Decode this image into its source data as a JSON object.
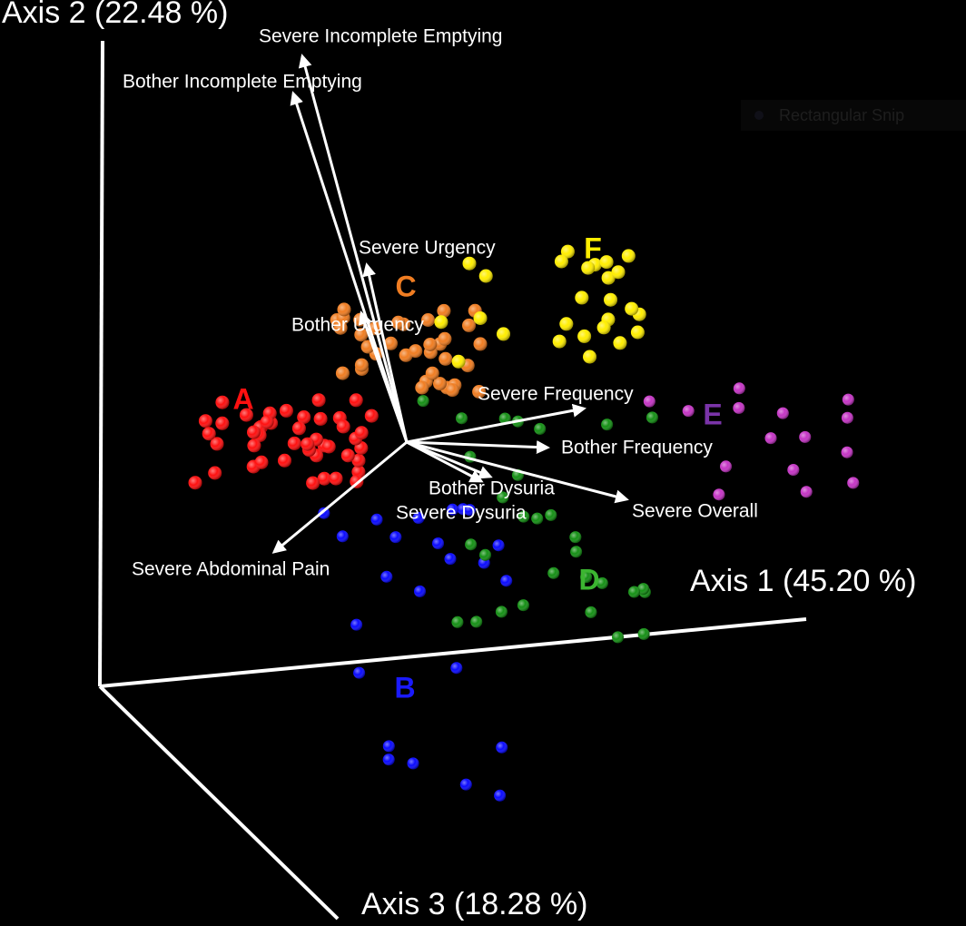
{
  "axes": [
    {
      "label": "Axis 1 (45.20 %)"
    },
    {
      "label": "Axis 2 (22.48 %)"
    },
    {
      "label": "Axis 3 (18.28 %)"
    }
  ],
  "vectors": [
    {
      "label": "Severe Incomplete Emptying"
    },
    {
      "label": "Bother Incomplete Emptying"
    },
    {
      "label": "Severe Urgency"
    },
    {
      "label": "Bother Urgency"
    },
    {
      "label": "Severe Frequency"
    },
    {
      "label": "Bother Frequency"
    },
    {
      "label": "Bother Dysuria"
    },
    {
      "label": "Severe Dysuria"
    },
    {
      "label": "Severe Overall"
    },
    {
      "label": "Severe Abdominal Pain"
    }
  ],
  "groups": [
    {
      "label": "A",
      "color": "#ff1010"
    },
    {
      "label": "B",
      "color": "#1a1aff"
    },
    {
      "label": "C",
      "color": "#f07d22"
    },
    {
      "label": "D",
      "color": "#3cb531"
    },
    {
      "label": "E",
      "color": "#7a34a8"
    },
    {
      "label": "F",
      "color": "#ffee00"
    }
  ],
  "overlay": "Rectangular Snip"
}
